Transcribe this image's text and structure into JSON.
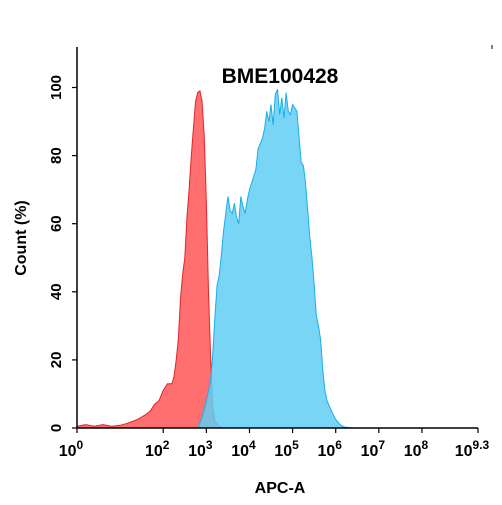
{
  "chart_data": {
    "type": "area",
    "title": "BME100428",
    "xlabel": "APC-A",
    "ylabel": "Count  (%)",
    "x_scale": "log10",
    "xlim": [
      0,
      9.3
    ],
    "ylim": [
      0,
      110
    ],
    "x_ticks": [
      {
        "value": 0,
        "base": "10",
        "exp": "0"
      },
      {
        "value": 2,
        "base": "10",
        "exp": "2"
      },
      {
        "value": 3,
        "base": "10",
        "exp": "3"
      },
      {
        "value": 4,
        "base": "10",
        "exp": "4"
      },
      {
        "value": 5,
        "base": "10",
        "exp": "5"
      },
      {
        "value": 6,
        "base": "10",
        "exp": "6"
      },
      {
        "value": 7,
        "base": "10",
        "exp": "7"
      },
      {
        "value": 8,
        "base": "10",
        "exp": "8"
      },
      {
        "value": 9.3,
        "base": "10",
        "exp": "9.3"
      }
    ],
    "y_ticks": [
      {
        "value": 0,
        "label": "0"
      },
      {
        "value": 20,
        "label": "20"
      },
      {
        "value": 40,
        "label": "40"
      },
      {
        "value": 60,
        "label": "60"
      },
      {
        "value": 80,
        "label": "80"
      },
      {
        "value": 100,
        "label": "100"
      }
    ],
    "grid": false,
    "series": [
      {
        "color": "#ff6f6f",
        "stroke": "#e0262a",
        "points": [
          [
            0.0,
            0.5
          ],
          [
            0.2,
            1
          ],
          [
            0.4,
            0.5
          ],
          [
            0.6,
            1
          ],
          [
            0.8,
            0.5
          ],
          [
            1.0,
            0.8
          ],
          [
            1.2,
            1.5
          ],
          [
            1.4,
            2.5
          ],
          [
            1.6,
            4
          ],
          [
            1.7,
            5
          ],
          [
            1.8,
            7
          ],
          [
            1.9,
            8
          ],
          [
            2.0,
            11
          ],
          [
            2.1,
            13
          ],
          [
            2.2,
            13
          ],
          [
            2.25,
            15
          ],
          [
            2.3,
            20
          ],
          [
            2.35,
            26
          ],
          [
            2.4,
            38
          ],
          [
            2.45,
            45
          ],
          [
            2.5,
            50
          ],
          [
            2.55,
            62
          ],
          [
            2.6,
            70
          ],
          [
            2.65,
            80
          ],
          [
            2.7,
            88
          ],
          [
            2.75,
            96
          ],
          [
            2.8,
            98.5
          ],
          [
            2.85,
            99
          ],
          [
            2.9,
            96
          ],
          [
            2.95,
            86
          ],
          [
            3.0,
            66
          ],
          [
            3.05,
            40
          ],
          [
            3.1,
            20
          ],
          [
            3.15,
            6
          ],
          [
            3.2,
            2
          ],
          [
            3.3,
            0.5
          ],
          [
            3.4,
            0
          ]
        ]
      },
      {
        "color": "#60cef4",
        "stroke": "#1aaee6",
        "points": [
          [
            2.8,
            0
          ],
          [
            2.9,
            3
          ],
          [
            3.0,
            8
          ],
          [
            3.1,
            14
          ],
          [
            3.15,
            22
          ],
          [
            3.2,
            33
          ],
          [
            3.25,
            42
          ],
          [
            3.3,
            45
          ],
          [
            3.35,
            51
          ],
          [
            3.4,
            58
          ],
          [
            3.45,
            63
          ],
          [
            3.5,
            68
          ],
          [
            3.55,
            64
          ],
          [
            3.6,
            63
          ],
          [
            3.65,
            66
          ],
          [
            3.7,
            62
          ],
          [
            3.75,
            60
          ],
          [
            3.8,
            68
          ],
          [
            3.85,
            65
          ],
          [
            3.9,
            63
          ],
          [
            3.95,
            67
          ],
          [
            4.0,
            70
          ],
          [
            4.1,
            74
          ],
          [
            4.15,
            76
          ],
          [
            4.2,
            82
          ],
          [
            4.3,
            85
          ],
          [
            4.35,
            88
          ],
          [
            4.4,
            93
          ],
          [
            4.45,
            90
          ],
          [
            4.5,
            95
          ],
          [
            4.55,
            89
          ],
          [
            4.6,
            98
          ],
          [
            4.65,
            99.5
          ],
          [
            4.7,
            92
          ],
          [
            4.75,
            97
          ],
          [
            4.8,
            91
          ],
          [
            4.85,
            98.5
          ],
          [
            4.9,
            93
          ],
          [
            4.95,
            92
          ],
          [
            5.0,
            95
          ],
          [
            5.1,
            93
          ],
          [
            5.2,
            78
          ],
          [
            5.25,
            77
          ],
          [
            5.3,
            72
          ],
          [
            5.35,
            64
          ],
          [
            5.4,
            56
          ],
          [
            5.45,
            50
          ],
          [
            5.5,
            42
          ],
          [
            5.55,
            33
          ],
          [
            5.6,
            30
          ],
          [
            5.65,
            26
          ],
          [
            5.7,
            17
          ],
          [
            5.75,
            11
          ],
          [
            5.8,
            8
          ],
          [
            5.9,
            5
          ],
          [
            6.0,
            2.5
          ],
          [
            6.1,
            1
          ],
          [
            6.2,
            0.3
          ],
          [
            6.4,
            0
          ]
        ]
      }
    ]
  }
}
